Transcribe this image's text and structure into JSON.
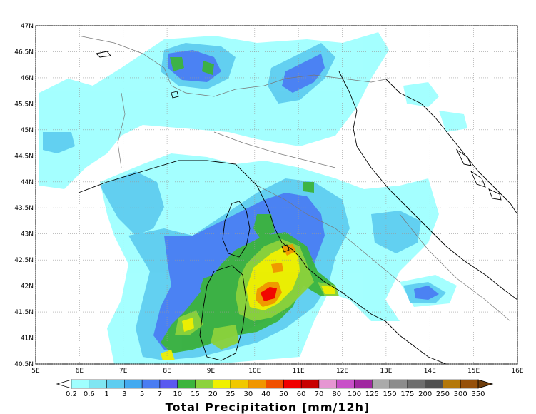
{
  "map": {
    "lat_ticks": [
      "47N",
      "46.5N",
      "46N",
      "45.5N",
      "45N",
      "44.5N",
      "44N",
      "43.5N",
      "43N",
      "42.5N",
      "42N",
      "41.5N",
      "41N",
      "40.5N"
    ],
    "lon_ticks": [
      "5E",
      "6E",
      "7E",
      "8E",
      "9E",
      "10E",
      "11E",
      "12E",
      "13E",
      "14E",
      "15E",
      "16E"
    ],
    "lat_range": [
      40.5,
      47.0
    ],
    "lon_range": [
      5.0,
      16.0
    ],
    "precip_bins": [
      0.2,
      0.6,
      1,
      3,
      5,
      7,
      10,
      15,
      20,
      25,
      30,
      40,
      50,
      60,
      70,
      80,
      100,
      125,
      150,
      175,
      200,
      250,
      300,
      350
    ],
    "bin_colors": [
      "#a0ffff",
      "#7fe6f2",
      "#5fcdf0",
      "#43aaf0",
      "#4a7df2",
      "#5a5af0",
      "#3cb43c",
      "#8cd23c",
      "#f0f000",
      "#f0c800",
      "#f09600",
      "#f05000",
      "#f00000",
      "#c80000",
      "#e696d2",
      "#c850c8",
      "#a028a0",
      "#aaaaaa",
      "#8c8c8c",
      "#6e6e6e",
      "#505050",
      "#b4780a",
      "#96500a",
      "#6e3c0a"
    ],
    "colorbar_labels": [
      "0.2",
      "0.6",
      "1",
      "3",
      "5",
      "7",
      "10",
      "15",
      "20",
      "25",
      "30",
      "40",
      "50",
      "60",
      "70",
      "80",
      "100",
      "125",
      "150",
      "175",
      "200",
      "250",
      "300",
      "350"
    ],
    "title": "Total Precipitation [mm/12h]"
  }
}
